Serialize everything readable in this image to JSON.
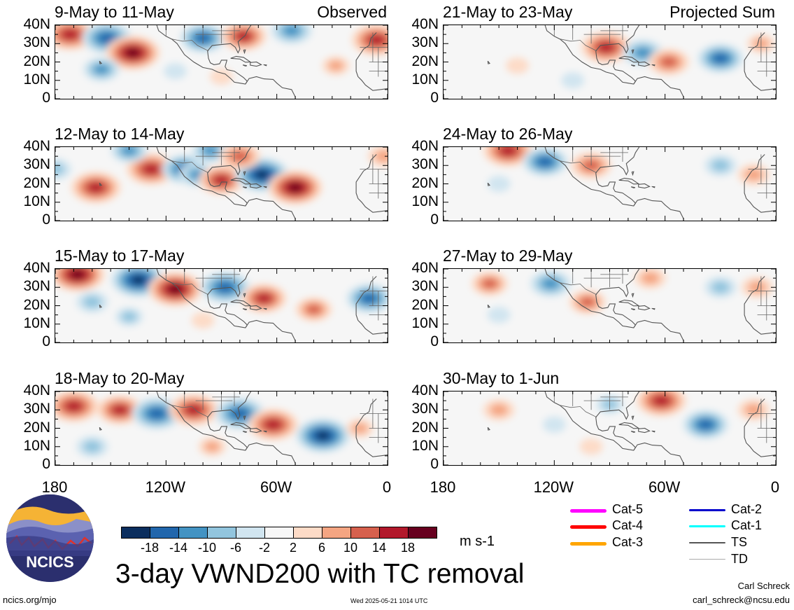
{
  "panels": [
    {
      "title": "9-May to 11-May",
      "tag": "Observed",
      "col": 0,
      "row": 0
    },
    {
      "title": "21-May to 23-May",
      "tag": "Projected Sum",
      "col": 1,
      "row": 0
    },
    {
      "title": "12-May to 14-May",
      "tag": "",
      "col": 0,
      "row": 1
    },
    {
      "title": "24-May to 26-May",
      "tag": "",
      "col": 1,
      "row": 1
    },
    {
      "title": "15-May to 17-May",
      "tag": "",
      "col": 0,
      "row": 2
    },
    {
      "title": "27-May to 29-May",
      "tag": "",
      "col": 1,
      "row": 2
    },
    {
      "title": "18-May to 20-May",
      "tag": "",
      "col": 0,
      "row": 3
    },
    {
      "title": "30-May to 1-Jun",
      "tag": "",
      "col": 1,
      "row": 3
    }
  ],
  "y_ticks": [
    "40N",
    "30N",
    "20N",
    "10N",
    "0"
  ],
  "x_ticks": [
    "180",
    "120W",
    "60W",
    "0"
  ],
  "colorbar": {
    "ticks": [
      "-18",
      "-14",
      "-10",
      "-6",
      "-2",
      "2",
      "6",
      "10",
      "14",
      "18"
    ],
    "colors": [
      "#0b2e5e",
      "#2166ac",
      "#4393c3",
      "#92c5de",
      "#d1e5f0",
      "#f7f7f7",
      "#fddbc7",
      "#f4a582",
      "#d6604d",
      "#b2182b",
      "#67001f"
    ],
    "units": "m s-1"
  },
  "title": "3-day VWND200 with TC removal",
  "logo_text": "NCICS",
  "url": "ncics.org/mjo",
  "timestamp": "Wed 2025-05-21 1014 UTC",
  "author": "Carl Schreck",
  "email": "carl_schreck@ncsu.edu",
  "legend": [
    {
      "label": "Cat-5",
      "color": "#ff00ff"
    },
    {
      "label": "Cat-4",
      "color": "#ff0000"
    },
    {
      "label": "Cat-3",
      "color": "#ffa500"
    },
    {
      "label": "Cat-2",
      "color": "#0000cc"
    },
    {
      "label": "Cat-1",
      "color": "#00ffff"
    },
    {
      "label": "TS",
      "color": "#555555"
    },
    {
      "label": "TD",
      "color": "#aaaaaa"
    }
  ],
  "blobs": [
    [
      {
        "lon": -172,
        "lat": 35,
        "v": 16
      },
      {
        "lon": -152,
        "lat": 33,
        "v": -16
      },
      {
        "lon": -138,
        "lat": 25,
        "v": 18
      },
      {
        "lon": -155,
        "lat": 16,
        "v": -10
      },
      {
        "lon": -100,
        "lat": 33,
        "v": -14
      },
      {
        "lon": -78,
        "lat": 34,
        "v": 14
      },
      {
        "lon": -52,
        "lat": 37,
        "v": -12
      },
      {
        "lon": -28,
        "lat": 18,
        "v": 6
      },
      {
        "lon": -6,
        "lat": 32,
        "v": 16
      },
      {
        "lon": -115,
        "lat": 15,
        "v": -4
      },
      {
        "lon": -90,
        "lat": 12,
        "v": 4
      }
    ],
    [
      {
        "lon": -92,
        "lat": 28,
        "v": 16
      },
      {
        "lon": -72,
        "lat": 25,
        "v": -12
      },
      {
        "lon": -58,
        "lat": 20,
        "v": 12
      },
      {
        "lon": -30,
        "lat": 22,
        "v": -14
      },
      {
        "lon": -110,
        "lat": 10,
        "v": -4
      },
      {
        "lon": -140,
        "lat": 18,
        "v": 4
      },
      {
        "lon": -8,
        "lat": 30,
        "v": 6
      }
    ],
    [
      {
        "lon": -158,
        "lat": 18,
        "v": 16
      },
      {
        "lon": -180,
        "lat": 28,
        "v": -8
      },
      {
        "lon": -128,
        "lat": 28,
        "v": 16
      },
      {
        "lon": -110,
        "lat": 28,
        "v": -14
      },
      {
        "lon": -103,
        "lat": 25,
        "v": -10
      },
      {
        "lon": -90,
        "lat": 22,
        "v": 14
      },
      {
        "lon": -68,
        "lat": 25,
        "v": -18
      },
      {
        "lon": -50,
        "lat": 18,
        "v": 18
      },
      {
        "lon": -140,
        "lat": 38,
        "v": -10
      },
      {
        "lon": -96,
        "lat": 38,
        "v": -10
      },
      {
        "lon": -80,
        "lat": 35,
        "v": 12
      },
      {
        "lon": -2,
        "lat": 35,
        "v": 8
      }
    ],
    [
      {
        "lon": -145,
        "lat": 38,
        "v": 16
      },
      {
        "lon": -125,
        "lat": 32,
        "v": -14
      },
      {
        "lon": -100,
        "lat": 30,
        "v": 12
      },
      {
        "lon": -30,
        "lat": 30,
        "v": -8
      },
      {
        "lon": -12,
        "lat": 25,
        "v": 8
      },
      {
        "lon": -150,
        "lat": 20,
        "v": -4
      }
    ],
    [
      {
        "lon": -168,
        "lat": 37,
        "v": 18
      },
      {
        "lon": -135,
        "lat": 34,
        "v": -18
      },
      {
        "lon": -115,
        "lat": 29,
        "v": 18
      },
      {
        "lon": -88,
        "lat": 30,
        "v": -16
      },
      {
        "lon": -67,
        "lat": 24,
        "v": 14
      },
      {
        "lon": -40,
        "lat": 18,
        "v": 10
      },
      {
        "lon": -10,
        "lat": 24,
        "v": -14
      },
      {
        "lon": -160,
        "lat": 22,
        "v": -8
      },
      {
        "lon": -140,
        "lat": 14,
        "v": -6
      },
      {
        "lon": -100,
        "lat": 12,
        "v": 4
      }
    ],
    [
      {
        "lon": -155,
        "lat": 32,
        "v": 10
      },
      {
        "lon": -122,
        "lat": 32,
        "v": -12
      },
      {
        "lon": -102,
        "lat": 22,
        "v": 10
      },
      {
        "lon": -68,
        "lat": 35,
        "v": 8
      },
      {
        "lon": -30,
        "lat": 30,
        "v": -8
      },
      {
        "lon": -10,
        "lat": 30,
        "v": 8
      },
      {
        "lon": -150,
        "lat": 15,
        "v": -4
      }
    ],
    [
      {
        "lon": -170,
        "lat": 32,
        "v": 16
      },
      {
        "lon": -145,
        "lat": 30,
        "v": 14
      },
      {
        "lon": -125,
        "lat": 28,
        "v": -16
      },
      {
        "lon": -105,
        "lat": 30,
        "v": 16
      },
      {
        "lon": -80,
        "lat": 28,
        "v": -16
      },
      {
        "lon": -62,
        "lat": 22,
        "v": 16
      },
      {
        "lon": -35,
        "lat": 16,
        "v": -18
      },
      {
        "lon": -160,
        "lat": 10,
        "v": -8
      },
      {
        "lon": -15,
        "lat": 20,
        "v": 6
      },
      {
        "lon": -95,
        "lat": 10,
        "v": 6
      }
    ],
    [
      {
        "lon": -150,
        "lat": 30,
        "v": 8
      },
      {
        "lon": -62,
        "lat": 35,
        "v": 16
      },
      {
        "lon": -38,
        "lat": 22,
        "v": -14
      },
      {
        "lon": -12,
        "lat": 30,
        "v": 8
      },
      {
        "lon": -90,
        "lat": 33,
        "v": -6
      },
      {
        "lon": -120,
        "lat": 22,
        "v": -4
      },
      {
        "lon": -100,
        "lat": 10,
        "v": 4
      }
    ]
  ]
}
